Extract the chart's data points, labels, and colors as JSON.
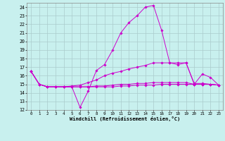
{
  "xlabel": "Windchill (Refroidissement éolien,°C)",
  "background_color": "#c8f0ee",
  "line_color": "#cc00cc",
  "grid_color": "#aacccc",
  "xlim": [
    -0.5,
    23.5
  ],
  "ylim": [
    12,
    24.5
  ],
  "yticks": [
    12,
    13,
    14,
    15,
    16,
    17,
    18,
    19,
    20,
    21,
    22,
    23,
    24
  ],
  "xticks": [
    0,
    1,
    2,
    3,
    4,
    5,
    6,
    7,
    8,
    9,
    10,
    11,
    12,
    13,
    14,
    15,
    16,
    17,
    18,
    19,
    20,
    21,
    22,
    23
  ],
  "lines": [
    {
      "x": [
        0,
        1,
        2,
        3,
        4,
        5,
        6,
        7,
        8,
        9,
        10,
        11,
        12,
        13,
        14,
        15,
        16,
        17,
        18,
        19,
        20,
        21,
        22,
        23
      ],
      "y": [
        16.5,
        15.0,
        14.7,
        14.7,
        14.7,
        14.7,
        12.3,
        14.2,
        16.6,
        17.3,
        19.0,
        21.0,
        22.2,
        23.0,
        24.0,
        24.2,
        21.3,
        17.5,
        17.3,
        17.5,
        15.0,
        16.2,
        15.8,
        14.9
      ]
    },
    {
      "x": [
        0,
        1,
        2,
        3,
        4,
        5,
        6,
        7,
        8,
        9,
        10,
        11,
        12,
        13,
        14,
        15,
        16,
        17,
        18,
        19,
        20,
        21,
        22,
        23
      ],
      "y": [
        16.5,
        15.0,
        14.7,
        14.7,
        14.7,
        14.8,
        14.9,
        15.2,
        15.5,
        16.0,
        16.3,
        16.5,
        16.8,
        17.0,
        17.2,
        17.5,
        17.5,
        17.5,
        17.5,
        17.5,
        15.1,
        15.1,
        15.0,
        14.9
      ]
    },
    {
      "x": [
        0,
        1,
        2,
        3,
        4,
        5,
        6,
        7,
        8,
        9,
        10,
        11,
        12,
        13,
        14,
        15,
        16,
        17,
        18,
        19,
        20,
        21,
        22,
        23
      ],
      "y": [
        16.5,
        15.0,
        14.7,
        14.7,
        14.7,
        14.7,
        14.7,
        14.7,
        14.8,
        14.8,
        14.9,
        15.0,
        15.0,
        15.1,
        15.1,
        15.2,
        15.2,
        15.2,
        15.2,
        15.2,
        15.0,
        15.0,
        15.0,
        14.9
      ]
    },
    {
      "x": [
        0,
        1,
        2,
        3,
        4,
        5,
        6,
        7,
        8,
        9,
        10,
        11,
        12,
        13,
        14,
        15,
        16,
        17,
        18,
        19,
        20,
        21,
        22,
        23
      ],
      "y": [
        16.5,
        15.0,
        14.7,
        14.7,
        14.7,
        14.7,
        14.7,
        14.7,
        14.7,
        14.7,
        14.7,
        14.8,
        14.8,
        14.9,
        14.9,
        14.9,
        15.0,
        15.0,
        15.0,
        15.0,
        15.0,
        15.0,
        15.0,
        14.9
      ]
    }
  ]
}
